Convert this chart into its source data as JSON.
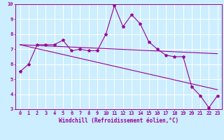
{
  "xlabel": "Windchill (Refroidissement éolien,°C)",
  "bg_color": "#cceeff",
  "grid_color": "#ffffff",
  "line_color": "#990099",
  "xlim": [
    -0.5,
    23.5
  ],
  "ylim": [
    3,
    10
  ],
  "yticks": [
    3,
    4,
    5,
    6,
    7,
    8,
    9,
    10
  ],
  "xticks": [
    0,
    1,
    2,
    3,
    4,
    5,
    6,
    7,
    8,
    9,
    10,
    11,
    12,
    13,
    14,
    15,
    16,
    17,
    18,
    19,
    20,
    21,
    22,
    23
  ],
  "series1_x": [
    0,
    1,
    2,
    3,
    4,
    5,
    6,
    7,
    8,
    9,
    10,
    11,
    12,
    13,
    14,
    15,
    16,
    17,
    18,
    19,
    20,
    21,
    22,
    23
  ],
  "series1_y": [
    5.5,
    6.0,
    7.3,
    7.3,
    7.3,
    7.6,
    6.9,
    7.0,
    6.9,
    6.9,
    8.0,
    9.9,
    8.5,
    9.3,
    8.7,
    7.5,
    7.0,
    6.6,
    6.5,
    6.5,
    4.5,
    3.9,
    3.1,
    3.9
  ],
  "series2_x": [
    0,
    23
  ],
  "series2_y": [
    7.3,
    6.7
  ],
  "series3_x": [
    0,
    23
  ],
  "series3_y": [
    7.3,
    4.3
  ],
  "linewidth": 0.8,
  "marker_size": 3,
  "xlabel_fontsize": 5.5,
  "tick_fontsize": 5.0,
  "xlabel_color": "#990099",
  "tick_color": "#990099",
  "axis_color": "#990099",
  "spine_color": "#990099"
}
